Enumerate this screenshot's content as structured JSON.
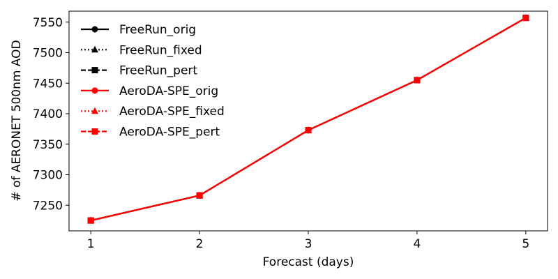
{
  "chart_data": {
    "type": "line",
    "title": "",
    "xlabel": "Forecast (days)",
    "ylabel": "# of AERONET 500nm AOD",
    "x": [
      1,
      2,
      3,
      4,
      5
    ],
    "xticks": [
      "1",
      "2",
      "3",
      "4",
      "5"
    ],
    "yticks": [
      "7250",
      "7300",
      "7350",
      "7400",
      "7450",
      "7500",
      "7550"
    ],
    "xlim": [
      0.8,
      5.2
    ],
    "ylim": [
      7208,
      7568
    ],
    "grid": false,
    "legend_position": "upper-left",
    "series": [
      {
        "name": "FreeRun_orig",
        "color": "#000000",
        "dash": "solid",
        "marker": "circle",
        "values": [
          7225,
          7266,
          7373,
          7455,
          7557
        ]
      },
      {
        "name": "FreeRun_fixed",
        "color": "#000000",
        "dash": "dotted",
        "marker": "triangle",
        "values": [
          7225,
          7266,
          7373,
          7455,
          7557
        ]
      },
      {
        "name": "FreeRun_pert",
        "color": "#000000",
        "dash": "dashed",
        "marker": "square",
        "values": [
          7225,
          7266,
          7373,
          7455,
          7557
        ]
      },
      {
        "name": "AeroDA-SPE_orig",
        "color": "#ff0000",
        "dash": "solid",
        "marker": "circle",
        "values": [
          7225,
          7266,
          7373,
          7455,
          7557
        ]
      },
      {
        "name": "AeroDA-SPE_fixed",
        "color": "#ff0000",
        "dash": "dotted",
        "marker": "triangle",
        "values": [
          7225,
          7266,
          7373,
          7455,
          7557
        ]
      },
      {
        "name": "AeroDA-SPE_pert",
        "color": "#ff0000",
        "dash": "dashed",
        "marker": "square",
        "values": [
          7225,
          7266,
          7373,
          7455,
          7557
        ]
      }
    ]
  }
}
